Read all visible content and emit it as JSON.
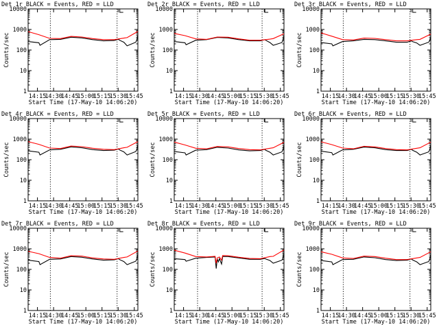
{
  "chart_data": [
    {
      "type": "line",
      "title": "Det 1r BLACK = Events, RED = LLD",
      "xlabel": "Start Time (17-May-10 14:06:20)",
      "ylabel": "Counts/sec",
      "yscale": "log",
      "ylim": [
        1,
        10000
      ],
      "xlim_minutes": [
        0,
        102
      ],
      "x_ticks": [
        "14:15",
        "14:30",
        "14:45",
        "15:00",
        "15:15",
        "15:30",
        "15:45"
      ],
      "y_ticks": [
        "1",
        "10",
        "100",
        "1000",
        "10000"
      ],
      "vertical_markers": [
        "14:27",
        "15:29"
      ],
      "series": [
        {
          "color": "#000000",
          "x": [
            0,
            10,
            11,
            20,
            30,
            40,
            50,
            60,
            70,
            80,
            84,
            85,
            89,
            92,
            100,
            101,
            102
          ],
          "y": [
            260,
            225,
            170,
            320,
            330,
            420,
            390,
            320,
            280,
            290,
            330,
            300,
            240,
            160,
            240,
            300,
            560
          ]
        },
        {
          "color": "#ff0000",
          "x": [
            0,
            10,
            20,
            30,
            40,
            50,
            60,
            70,
            80,
            89,
            92,
            102
          ],
          "y": [
            790,
            560,
            370,
            360,
            460,
            430,
            360,
            320,
            320,
            380,
            400,
            800
          ]
        }
      ]
    },
    {
      "type": "line",
      "title": "Det 2r BLACK = Events, RED = LLD",
      "xlabel": "Start Time (17-May-10 14:06:20)",
      "ylabel": "Counts/sec",
      "yscale": "log",
      "ylim": [
        1,
        10000
      ],
      "xlim_minutes": [
        0,
        102
      ],
      "x_ticks": [
        "14:15",
        "14:30",
        "14:45",
        "15:00",
        "15:15",
        "15:30",
        "15:45"
      ],
      "y_ticks": [
        "1",
        "10",
        "100",
        "1000",
        "10000"
      ],
      "vertical_markers": [
        "14:28",
        "15:28"
      ],
      "series": [
        {
          "color": "#000000",
          "x": [
            0,
            10,
            11,
            20,
            30,
            40,
            50,
            60,
            70,
            80,
            84,
            85,
            89,
            92,
            100,
            101,
            102
          ],
          "y": [
            260,
            225,
            180,
            300,
            320,
            410,
            390,
            320,
            280,
            280,
            320,
            300,
            230,
            170,
            230,
            300,
            520
          ]
        },
        {
          "color": "#ff0000",
          "x": [
            0,
            10,
            20,
            30,
            40,
            50,
            60,
            70,
            80,
            89,
            92,
            102
          ],
          "y": [
            640,
            500,
            350,
            330,
            430,
            420,
            350,
            300,
            300,
            340,
            360,
            620
          ]
        }
      ]
    },
    {
      "type": "line",
      "title": "Det 3r BLACK = Events, RED = LLD",
      "xlabel": "Start Time (17-May-10 14:06:20)",
      "ylabel": "Counts/sec",
      "yscale": "log",
      "ylim": [
        1,
        10000
      ],
      "xlim_minutes": [
        0,
        102
      ],
      "x_ticks": [
        "14:15",
        "14:30",
        "14:45",
        "15:00",
        "15:15",
        "15:30",
        "15:45"
      ],
      "y_ticks": [
        "1",
        "10",
        "100",
        "1000",
        "10000"
      ],
      "vertical_markers": [
        "14:27",
        "15:29"
      ],
      "series": [
        {
          "color": "#000000",
          "x": [
            0,
            10,
            11,
            20,
            30,
            40,
            50,
            60,
            70,
            80,
            84,
            85,
            89,
            92,
            100,
            101,
            102
          ],
          "y": [
            230,
            200,
            160,
            260,
            280,
            330,
            320,
            280,
            240,
            240,
            280,
            260,
            220,
            170,
            240,
            280,
            470
          ]
        },
        {
          "color": "#ff0000",
          "x": [
            0,
            10,
            20,
            30,
            40,
            50,
            60,
            70,
            80,
            89,
            92,
            102
          ],
          "y": [
            680,
            470,
            320,
            310,
            380,
            370,
            320,
            280,
            280,
            320,
            330,
            600
          ]
        }
      ]
    },
    {
      "type": "line",
      "title": "Det 4r BLACK = Events, RED = LLD",
      "xlabel": "Start Time (17-May-10 14:06:20)",
      "ylabel": "Counts/sec",
      "yscale": "log",
      "ylim": [
        1,
        10000
      ],
      "xlim_minutes": [
        0,
        102
      ],
      "x_ticks": [
        "14:15",
        "14:30",
        "14:45",
        "15:00",
        "15:15",
        "15:30",
        "15:45"
      ],
      "y_ticks": [
        "1",
        "10",
        "100",
        "1000",
        "10000"
      ],
      "vertical_markers": [
        "14:27",
        "15:29"
      ],
      "series": [
        {
          "color": "#000000",
          "x": [
            0,
            10,
            11,
            20,
            30,
            40,
            50,
            60,
            70,
            80,
            84,
            85,
            89,
            92,
            100,
            101,
            102
          ],
          "y": [
            270,
            230,
            170,
            300,
            320,
            420,
            380,
            310,
            280,
            290,
            330,
            300,
            240,
            170,
            250,
            310,
            560
          ]
        },
        {
          "color": "#ff0000",
          "x": [
            0,
            10,
            20,
            30,
            40,
            50,
            60,
            70,
            80,
            89,
            92,
            102
          ],
          "y": [
            760,
            560,
            370,
            350,
            460,
            430,
            360,
            320,
            310,
            380,
            400,
            760
          ]
        }
      ]
    },
    {
      "type": "line",
      "title": "Det 5r BLACK = Events, RED = LLD",
      "xlabel": "Start Time (17-May-10 14:06:20)",
      "ylabel": "Counts/sec",
      "yscale": "log",
      "ylim": [
        1,
        10000
      ],
      "xlim_minutes": [
        0,
        102
      ],
      "x_ticks": [
        "14:15",
        "14:30",
        "14:45",
        "15:00",
        "15:15",
        "15:30",
        "15:45"
      ],
      "y_ticks": [
        "1",
        "10",
        "100",
        "1000",
        "10000"
      ],
      "vertical_markers": [
        "14:28",
        "15:28"
      ],
      "series": [
        {
          "color": "#000000",
          "x": [
            0,
            10,
            11,
            20,
            30,
            40,
            50,
            60,
            70,
            80,
            84,
            85,
            89,
            92,
            100,
            101,
            102
          ],
          "y": [
            250,
            215,
            170,
            290,
            310,
            400,
            370,
            300,
            270,
            280,
            320,
            290,
            230,
            170,
            240,
            300,
            520
          ]
        },
        {
          "color": "#ff0000",
          "x": [
            0,
            10,
            20,
            30,
            40,
            50,
            60,
            70,
            80,
            89,
            92,
            102
          ],
          "y": [
            720,
            520,
            360,
            340,
            440,
            420,
            350,
            310,
            300,
            360,
            380,
            700
          ]
        }
      ]
    },
    {
      "type": "line",
      "title": "Det 6r BLACK = Events, RED = LLD",
      "xlabel": "Start Time (17-May-10 14:06:20)",
      "ylabel": "Counts/sec",
      "yscale": "log",
      "ylim": [
        1,
        10000
      ],
      "xlim_minutes": [
        0,
        102
      ],
      "x_ticks": [
        "14:15",
        "14:30",
        "14:45",
        "15:00",
        "15:15",
        "15:30",
        "15:45"
      ],
      "y_ticks": [
        "1",
        "10",
        "100",
        "1000",
        "10000"
      ],
      "vertical_markers": [
        "14:27",
        "15:29"
      ],
      "series": [
        {
          "color": "#000000",
          "x": [
            0,
            10,
            11,
            20,
            30,
            40,
            50,
            60,
            70,
            80,
            84,
            85,
            89,
            92,
            100,
            101,
            102
          ],
          "y": [
            260,
            220,
            170,
            300,
            320,
            410,
            380,
            310,
            280,
            280,
            320,
            290,
            230,
            170,
            240,
            300,
            540
          ]
        },
        {
          "color": "#ff0000",
          "x": [
            0,
            10,
            20,
            30,
            40,
            50,
            60,
            70,
            80,
            89,
            92,
            102
          ],
          "y": [
            740,
            540,
            370,
            340,
            450,
            420,
            350,
            310,
            300,
            360,
            380,
            720
          ]
        }
      ]
    },
    {
      "type": "line",
      "title": "Det 7r BLACK = Events, RED = LLD",
      "xlabel": "Start Time (17-May-10 14:06:20)",
      "ylabel": "Counts/sec",
      "yscale": "log",
      "ylim": [
        1,
        10000
      ],
      "xlim_minutes": [
        0,
        102
      ],
      "x_ticks": [
        "14:15",
        "14:30",
        "14:45",
        "15:00",
        "15:15",
        "15:30",
        "15:45"
      ],
      "y_ticks": [
        "1",
        "10",
        "100",
        "1000",
        "10000"
      ],
      "vertical_markers": [
        "14:27",
        "15:29"
      ],
      "series": [
        {
          "color": "#000000",
          "x": [
            0,
            10,
            11,
            20,
            30,
            40,
            50,
            60,
            70,
            80,
            84,
            85,
            89,
            92,
            100,
            101,
            102
          ],
          "y": [
            280,
            240,
            170,
            310,
            320,
            420,
            390,
            320,
            280,
            290,
            330,
            300,
            240,
            170,
            250,
            310,
            580
          ]
        },
        {
          "color": "#ff0000",
          "x": [
            0,
            10,
            20,
            30,
            40,
            50,
            60,
            70,
            80,
            89,
            92,
            102
          ],
          "y": [
            760,
            580,
            380,
            350,
            460,
            440,
            360,
            320,
            310,
            380,
            400,
            780
          ]
        }
      ]
    },
    {
      "type": "line",
      "title": "Det 8r BLACK = Events, RED = LLD",
      "xlabel": "Start Time (17-May-10 14:06:20)",
      "ylabel": "Counts/sec",
      "yscale": "log",
      "ylim": [
        1,
        10000
      ],
      "xlim_minutes": [
        0,
        102
      ],
      "x_ticks": [
        "14:15",
        "14:30",
        "14:45",
        "15:00",
        "15:15",
        "15:30",
        "15:45"
      ],
      "y_ticks": [
        "1",
        "10",
        "100",
        "1000",
        "10000"
      ],
      "vertical_markers": [
        "14:28",
        "15:28"
      ],
      "series": [
        {
          "color": "#000000",
          "x": [
            0,
            10,
            11,
            20,
            30,
            38,
            39,
            40,
            41,
            42,
            44,
            45,
            50,
            60,
            70,
            80,
            84,
            85,
            89,
            92,
            100,
            101,
            102
          ],
          "y": [
            330,
            300,
            250,
            350,
            380,
            400,
            110,
            320,
            230,
            330,
            180,
            420,
            420,
            360,
            310,
            310,
            340,
            320,
            270,
            200,
            280,
            340,
            640
          ]
        },
        {
          "color": "#ff0000",
          "x": [
            0,
            10,
            20,
            30,
            38,
            39,
            40,
            42,
            44,
            45,
            50,
            60,
            70,
            80,
            89,
            92,
            102
          ],
          "y": [
            860,
            620,
            420,
            400,
            430,
            200,
            360,
            400,
            280,
            470,
            460,
            390,
            340,
            330,
            420,
            430,
            880
          ]
        }
      ]
    },
    {
      "type": "line",
      "title": "Det 9r BLACK = Events, RED = LLD",
      "xlabel": "Start Time (17-May-10 14:06:20)",
      "ylabel": "Counts/sec",
      "yscale": "log",
      "ylim": [
        1,
        10000
      ],
      "xlim_minutes": [
        0,
        102
      ],
      "x_ticks": [
        "14:15",
        "14:30",
        "14:45",
        "15:00",
        "15:15",
        "15:30",
        "15:45"
      ],
      "y_ticks": [
        "1",
        "10",
        "100",
        "1000",
        "10000"
      ],
      "vertical_markers": [
        "14:27",
        "15:29"
      ],
      "series": [
        {
          "color": "#000000",
          "x": [
            0,
            10,
            11,
            20,
            30,
            40,
            50,
            60,
            70,
            80,
            84,
            85,
            89,
            92,
            100,
            101,
            102
          ],
          "y": [
            270,
            230,
            170,
            300,
            310,
            400,
            370,
            300,
            270,
            280,
            320,
            290,
            230,
            170,
            240,
            300,
            540
          ]
        },
        {
          "color": "#ff0000",
          "x": [
            0,
            10,
            20,
            30,
            40,
            50,
            60,
            70,
            80,
            89,
            92,
            102
          ],
          "y": [
            720,
            540,
            360,
            340,
            440,
            420,
            350,
            300,
            300,
            360,
            380,
            720
          ]
        }
      ]
    }
  ]
}
